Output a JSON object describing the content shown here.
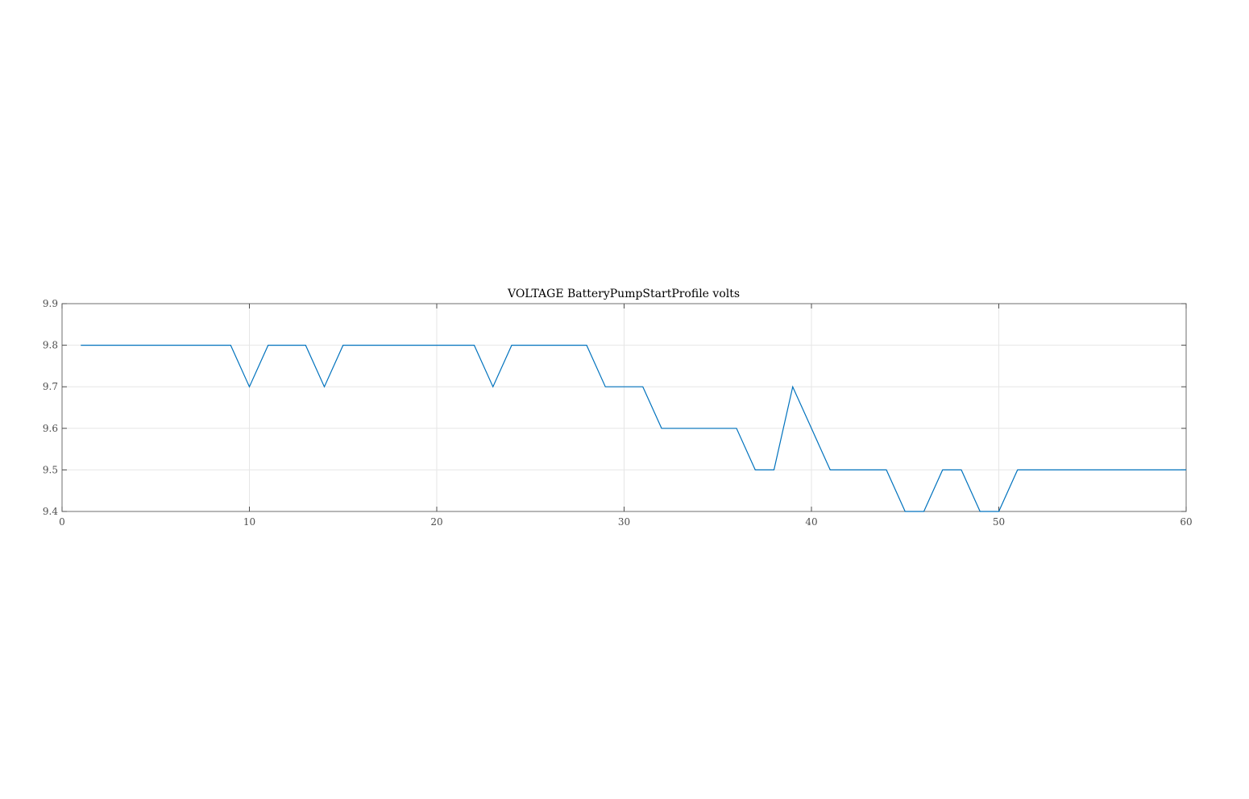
{
  "chart_data": {
    "type": "line",
    "title": "VOLTAGE BatteryPumpStartProfile volts",
    "xlabel": "",
    "ylabel": "",
    "xlim": [
      0,
      60
    ],
    "ylim": [
      9.4,
      9.9
    ],
    "xticks": [
      0,
      10,
      20,
      30,
      40,
      50,
      60
    ],
    "yticks": [
      9.4,
      9.5,
      9.6,
      9.7,
      9.8,
      9.9
    ],
    "xtick_labels": [
      "0",
      "10",
      "20",
      "30",
      "40",
      "50",
      "60"
    ],
    "ytick_labels": [
      "9.4",
      "9.5",
      "9.6",
      "9.7",
      "9.8",
      "9.9"
    ],
    "grid": true,
    "legend": "none",
    "series": [
      {
        "color": "#0072bd",
        "x": [
          1,
          2,
          3,
          4,
          5,
          6,
          7,
          8,
          9,
          10,
          11,
          12,
          13,
          14,
          15,
          16,
          17,
          18,
          19,
          20,
          21,
          22,
          23,
          24,
          25,
          26,
          27,
          28,
          29,
          30,
          31,
          32,
          33,
          34,
          35,
          36,
          37,
          38,
          39,
          40,
          41,
          42,
          43,
          44,
          45,
          46,
          47,
          48,
          49,
          50,
          51,
          52,
          53,
          54,
          55,
          56,
          57,
          58,
          59,
          60
        ],
        "values": [
          9.8,
          9.8,
          9.8,
          9.8,
          9.8,
          9.8,
          9.8,
          9.8,
          9.8,
          9.7,
          9.8,
          9.8,
          9.8,
          9.7,
          9.8,
          9.8,
          9.8,
          9.8,
          9.8,
          9.8,
          9.8,
          9.8,
          9.7,
          9.8,
          9.8,
          9.8,
          9.8,
          9.8,
          9.7,
          9.7,
          9.7,
          9.6,
          9.6,
          9.6,
          9.6,
          9.6,
          9.5,
          9.5,
          9.7,
          9.6,
          9.5,
          9.5,
          9.5,
          9.5,
          9.4,
          9.4,
          9.5,
          9.5,
          9.4,
          9.4,
          9.5,
          9.5,
          9.5,
          9.5,
          9.5,
          9.5,
          9.5,
          9.5,
          9.5,
          9.5
        ]
      }
    ]
  }
}
